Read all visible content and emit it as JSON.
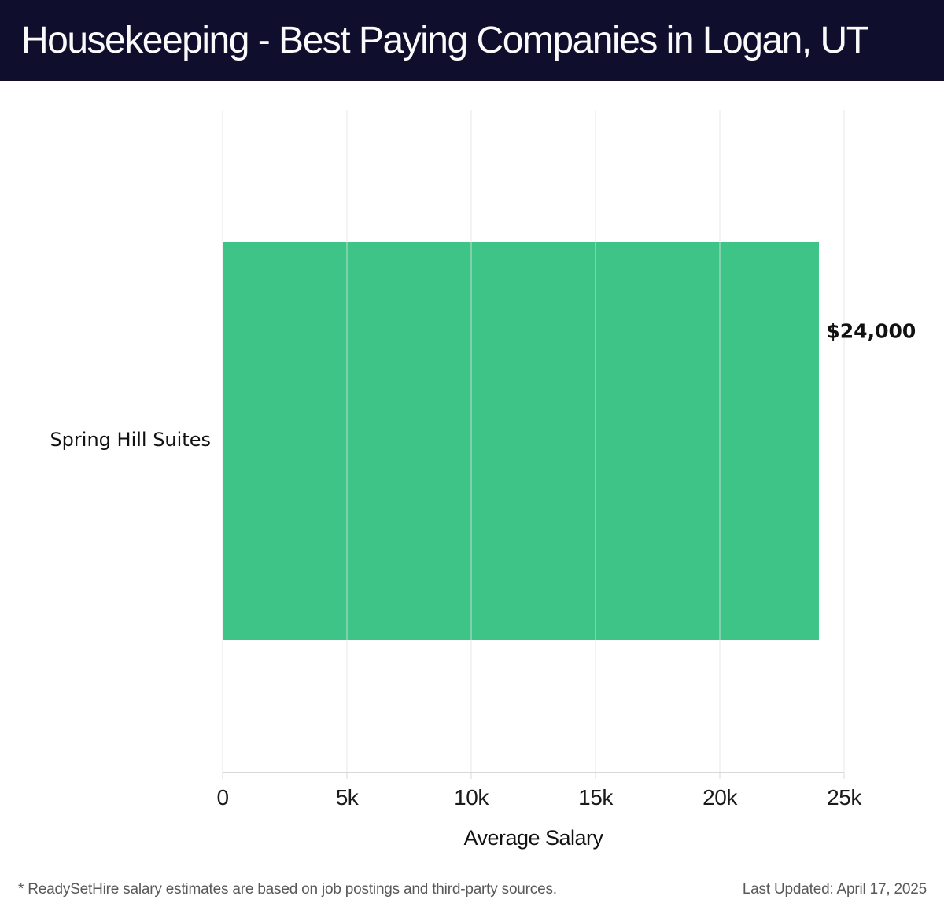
{
  "header": {
    "title": "Housekeeping - Best Paying Companies in Logan, UT"
  },
  "chart_data": {
    "type": "bar",
    "orientation": "horizontal",
    "title": "Housekeeping - Best Paying Companies in Logan, UT",
    "categories": [
      "Spring Hill Suites"
    ],
    "values": [
      24000
    ],
    "value_labels": [
      "$24,000"
    ],
    "xlabel": "Average Salary",
    "ylabel": "",
    "xlim": [
      0,
      25000
    ],
    "xticks": [
      {
        "value": 0,
        "label": "0"
      },
      {
        "value": 5000,
        "label": "5k"
      },
      {
        "value": 10000,
        "label": "10k"
      },
      {
        "value": 15000,
        "label": "15k"
      },
      {
        "value": 20000,
        "label": "20k"
      },
      {
        "value": 25000,
        "label": "25k"
      }
    ],
    "grid": true,
    "grid_orientation": "vertical",
    "legend": false,
    "bar_color": "#3ec486"
  },
  "footer": {
    "note": "* ReadySetHire salary estimates are based on job postings and third-party sources.",
    "last_updated": "Last Updated: April 17, 2025"
  },
  "colors": {
    "header_bg": "#0f0f2d",
    "header_text": "#fafafa",
    "bar": "#3ec486",
    "gridline": "rgba(226,226,226,0.82)",
    "axis_line": "#d8d8d8",
    "tick_text": "#1a1a1a",
    "label_text": "#111111",
    "footer_text": "#58595b"
  }
}
